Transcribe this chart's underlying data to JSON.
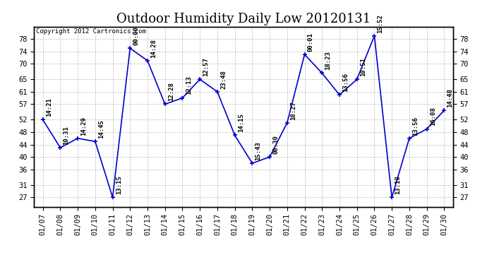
{
  "title": "Outdoor Humidity Daily Low 20120131",
  "copyright": "Copyright 2012 Cartronics.com",
  "dates": [
    "01/07",
    "01/08",
    "01/09",
    "01/10",
    "01/11",
    "01/12",
    "01/13",
    "01/14",
    "01/15",
    "01/16",
    "01/17",
    "01/18",
    "01/19",
    "01/20",
    "01/21",
    "01/22",
    "01/23",
    "01/24",
    "01/25",
    "01/26",
    "01/27",
    "01/28",
    "01/29",
    "01/30"
  ],
  "values": [
    52,
    43,
    46,
    45,
    27,
    75,
    71,
    57,
    59,
    65,
    61,
    47,
    38,
    40,
    51,
    73,
    67,
    60,
    65,
    79,
    27,
    46,
    49,
    55
  ],
  "times": [
    "14:21",
    "10:31",
    "14:29",
    "14:45",
    "13:15",
    "00:00",
    "14:28",
    "12:28",
    "12:13",
    "12:57",
    "23:48",
    "14:15",
    "15:43",
    "00:30",
    "10:27",
    "00:01",
    "18:23",
    "13:56",
    "10:51",
    "15:52",
    "13:18",
    "13:56",
    "16:08",
    "14:48"
  ],
  "line_color": "#0000cc",
  "marker_color": "#0000cc",
  "bg_color": "#ffffff",
  "grid_color": "#bbbbbb",
  "ylim": [
    24,
    82
  ],
  "yticks": [
    27,
    31,
    36,
    40,
    44,
    48,
    52,
    57,
    61,
    65,
    70,
    74,
    78
  ],
  "title_fontsize": 13,
  "label_fontsize": 6.5,
  "tick_fontsize": 7.5,
  "copyright_fontsize": 6.5
}
